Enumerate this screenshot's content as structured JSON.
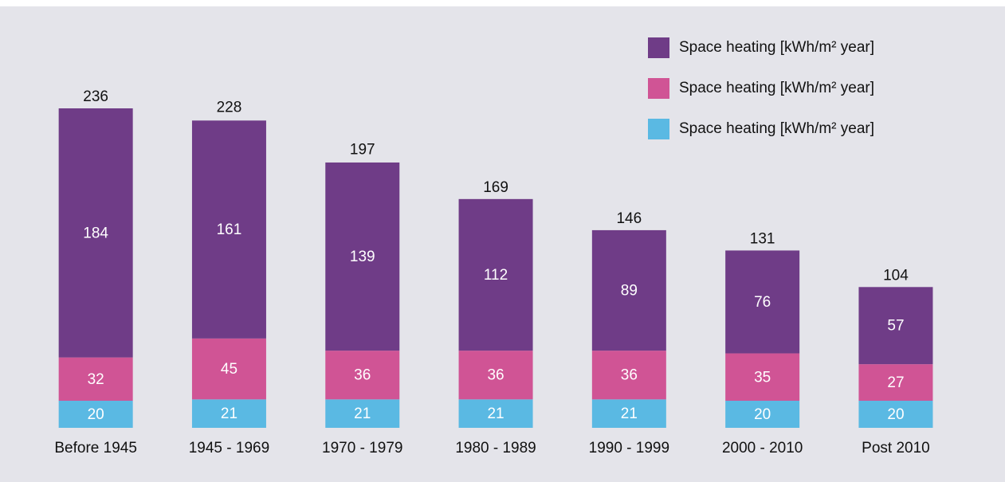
{
  "chart_data": {
    "type": "stacked-bar",
    "categories": [
      "Before 1945",
      "1945 - 1969",
      "1970 - 1979",
      "1980 - 1989",
      "1990 - 1999",
      "2000 - 2010",
      "Post 2010"
    ],
    "series": [
      {
        "name": "Space heating [kWh/m² year]",
        "color": "#5ab9e3",
        "values": [
          20,
          21,
          21,
          21,
          21,
          20,
          20
        ]
      },
      {
        "name": "Space heating [kWh/m² year]",
        "color": "#d05495",
        "values": [
          32,
          45,
          36,
          36,
          36,
          35,
          27
        ]
      },
      {
        "name": "Space heating [kWh/m² year]",
        "color": "#6f3c87",
        "values": [
          184,
          161,
          139,
          112,
          89,
          76,
          57
        ]
      }
    ],
    "totals": [
      236,
      228,
      197,
      169,
      146,
      131,
      104
    ]
  }
}
